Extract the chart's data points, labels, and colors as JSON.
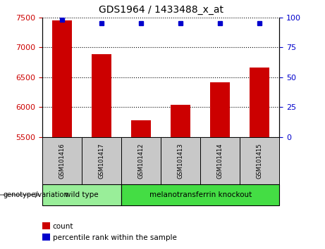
{
  "title": "GDS1964 / 1433488_x_at",
  "samples": [
    "GSM101416",
    "GSM101417",
    "GSM101412",
    "GSM101413",
    "GSM101414",
    "GSM101415"
  ],
  "counts": [
    7450,
    6880,
    5780,
    6040,
    6420,
    6660
  ],
  "percentiles": [
    98,
    95,
    95,
    95,
    95,
    95
  ],
  "ylim_left": [
    5500,
    7500
  ],
  "yticks_left": [
    5500,
    6000,
    6500,
    7000,
    7500
  ],
  "ylim_right": [
    0,
    100
  ],
  "yticks_right": [
    0,
    25,
    50,
    75,
    100
  ],
  "bar_color": "#cc0000",
  "dot_color": "#0000cc",
  "groups": [
    {
      "label": "wild type",
      "indices": [
        0,
        1
      ],
      "color": "#99ee99"
    },
    {
      "label": "melanotransferrin knockout",
      "indices": [
        2,
        3,
        4,
        5
      ],
      "color": "#44dd44"
    }
  ],
  "group_label": "genotype/variation",
  "legend_count_label": "count",
  "legend_percentile_label": "percentile rank within the sample",
  "bar_width": 0.5,
  "tick_label_color_left": "#cc0000",
  "tick_label_color_right": "#0000cc",
  "sample_box_color": "#c8c8c8",
  "figsize": [
    4.61,
    3.54
  ],
  "dpi": 100
}
